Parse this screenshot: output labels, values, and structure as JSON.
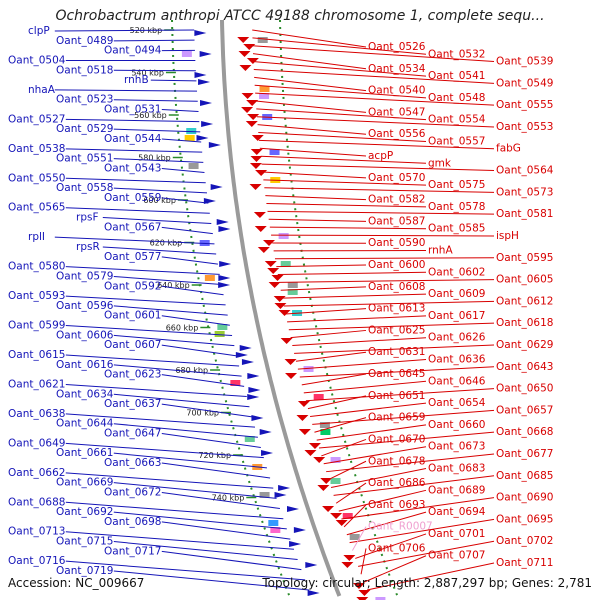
{
  "title": "Ochrobactrum anthropi ATCC 49188 chromosome 1, complete sequ...",
  "accession": "Accession: NC_009667",
  "summary": "Topology: circular; Length: 2,887,297 bp; Genes: 2,781",
  "colors": {
    "minus_strand": "#1515b8",
    "plus_strand": "#d80000",
    "rna": "#f0a0d0",
    "backbone": "#9a9a9a",
    "scale": "#2a8a2a"
  },
  "scale_ticks": [
    "520 kbp",
    "540 kbp",
    "560 kbp",
    "580 kbp",
    "600 kbp",
    "620 kbp",
    "640 kbp",
    "660 kbp",
    "680 kbp",
    "700 kbp",
    "720 kbp",
    "740 kbp"
  ],
  "left_genes": [
    "clpP",
    "Oant_0489",
    "Oant_0494",
    "Oant_0504",
    "Oant_0518",
    "rnhB",
    "nhaA",
    "Oant_0523",
    "Oant_0531",
    "Oant_0527",
    "Oant_0529",
    "Oant_0544",
    "Oant_0538",
    "Oant_0551",
    "Oant_0543",
    "Oant_0550",
    "Oant_0558",
    "Oant_0559",
    "Oant_0565",
    "rpsF",
    "Oant_0567",
    "rplI",
    "rpsR",
    "Oant_0577",
    "Oant_0580",
    "Oant_0579",
    "Oant_0592",
    "Oant_0593",
    "Oant_0596",
    "Oant_0601",
    "Oant_0599",
    "Oant_0606",
    "Oant_0607",
    "Oant_0615",
    "Oant_0616",
    "Oant_0623",
    "Oant_0621",
    "Oant_0634",
    "Oant_0637",
    "Oant_0638",
    "Oant_0644",
    "Oant_0647",
    "Oant_0649",
    "Oant_0661",
    "Oant_0663",
    "Oant_0662",
    "Oant_0669",
    "Oant_0672",
    "Oant_0688",
    "Oant_0692",
    "Oant_0698",
    "Oant_0713",
    "Oant_0715",
    "Oant_0717",
    "Oant_0716",
    "Oant_0719"
  ],
  "right_genes": [
    "Oant_0526",
    "Oant_0532",
    "Oant_0539",
    "Oant_0534",
    "Oant_0541",
    "Oant_0549",
    "Oant_0540",
    "Oant_0548",
    "Oant_0555",
    "Oant_0547",
    "Oant_0554",
    "Oant_0553",
    "Oant_0556",
    "Oant_0557",
    "fabG",
    "acpP",
    "gmk",
    "Oant_0564",
    "Oant_0570",
    "Oant_0575",
    "Oant_0573",
    "Oant_0582",
    "Oant_0578",
    "Oant_0581",
    "Oant_0587",
    "Oant_0585",
    "ispH",
    "Oant_0590",
    "rnhA",
    "Oant_0595",
    "Oant_0600",
    "Oant_0602",
    "Oant_0605",
    "Oant_0608",
    "Oant_0609",
    "Oant_0612",
    "Oant_0613",
    "Oant_0617",
    "Oant_0618",
    "Oant_0625",
    "Oant_0626",
    "Oant_0629",
    "Oant_0631",
    "Oant_0636",
    "Oant_0643",
    "Oant_0645",
    "Oant_0646",
    "Oant_0650",
    "Oant_0651",
    "Oant_0654",
    "Oant_0657",
    "Oant_0659",
    "Oant_0660",
    "Oant_0668",
    "Oant_0670",
    "Oant_0673",
    "Oant_0677",
    "Oant_0678",
    "Oant_0683",
    "Oant_0685",
    "Oant_0686",
    "Oant_0689",
    "Oant_0690",
    "Oant_0693",
    "Oant_0694",
    "Oant_0695",
    "Oant_R0007",
    "Oant_0701",
    "Oant_0702",
    "Oant_0706",
    "Oant_0707",
    "Oant_0711"
  ]
}
